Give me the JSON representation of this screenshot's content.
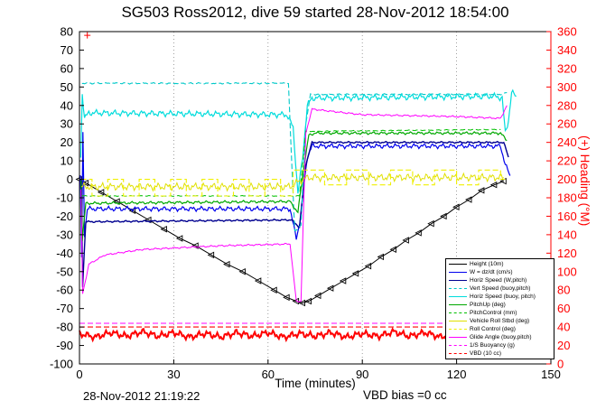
{
  "title": "SG503 Ross2012, dive 59 started 28-Nov-2012 18:54:00",
  "footer": {
    "timestamp": "28-Nov-2012 21:19:22",
    "vbd_bias": "VBD bias =0 cc"
  },
  "chart_data": {
    "type": "line",
    "title": "SG503 Ross2012, dive 59 started 28-Nov-2012 18:54:00",
    "xlabel": "Time (minutes)",
    "x_axis": {
      "min": 0,
      "max": 150,
      "ticks": [
        0,
        30,
        60,
        90,
        120,
        150
      ]
    },
    "left_axis": {
      "min": -100,
      "max": 80,
      "tick_step": 10
    },
    "right_axis": {
      "label": "(+) Heading (°M)",
      "min": 0,
      "max": 360,
      "tick_step": 20,
      "color": "#ff0000"
    },
    "grid": "vertical-dotted",
    "legend": {
      "position": "lower-right",
      "entries": [
        {
          "label": "Height (10m)",
          "color": "#000000",
          "dash": "solid"
        },
        {
          "label": "W = dz/dt (cm/s)",
          "color": "#0000ee",
          "dash": "solid"
        },
        {
          "label": "Horiz Speed (W,pitch)",
          "color": "#000090",
          "dash": "solid"
        },
        {
          "label": "Vert Speed (buoy,pitch)",
          "color": "#00c8c8",
          "dash": "dashed"
        },
        {
          "label": "Horiz Speed (buoy, pitch)",
          "color": "#00dcdc",
          "dash": "solid"
        },
        {
          "label": "PitchUp (deg)",
          "color": "#00a800",
          "dash": "solid"
        },
        {
          "label": "PitchControl (mm)",
          "color": "#00c000",
          "dash": "dashed"
        },
        {
          "label": "Vehicle Roll Stbd (deg)",
          "color": "#e0e000",
          "dash": "solid"
        },
        {
          "label": "Roll Control (deg)",
          "color": "#f0f000",
          "dash": "dashed"
        },
        {
          "label": "Glide Angle (buoy,pitch)",
          "color": "#ff00ff",
          "dash": "solid"
        },
        {
          "label": "1/S Buoyancy (g)",
          "color": "#ff00ff",
          "dash": "dashed"
        },
        {
          "label": "VBD (10 cc)",
          "color": "#ff0000",
          "dash": "dashed"
        }
      ]
    },
    "series": [
      {
        "name": "height-10m",
        "color": "#000000",
        "dash": "solid",
        "width": 1,
        "axis": "left",
        "noise": 0,
        "marker": "triangle-left",
        "points": [
          [
            0,
            0
          ],
          [
            2,
            -2
          ],
          [
            7,
            -7
          ],
          [
            12,
            -12
          ],
          [
            17,
            -17
          ],
          [
            22,
            -22
          ],
          [
            27,
            -27
          ],
          [
            32,
            -32
          ],
          [
            37,
            -36
          ],
          [
            42,
            -41
          ],
          [
            47,
            -46
          ],
          [
            52,
            -50
          ],
          [
            57,
            -55
          ],
          [
            62,
            -60
          ],
          [
            66,
            -64
          ],
          [
            69,
            -66
          ],
          [
            71,
            -67
          ],
          [
            73,
            -66
          ],
          [
            76,
            -63
          ],
          [
            80,
            -59
          ],
          [
            84,
            -55
          ],
          [
            88,
            -51
          ],
          [
            92,
            -47
          ],
          [
            96,
            -42
          ],
          [
            100,
            -38
          ],
          [
            104,
            -33
          ],
          [
            108,
            -29
          ],
          [
            112,
            -24
          ],
          [
            116,
            -20
          ],
          [
            120,
            -15
          ],
          [
            124,
            -11
          ],
          [
            128,
            -6
          ],
          [
            132,
            -3
          ],
          [
            135,
            -1
          ]
        ]
      },
      {
        "name": "w-dzdt",
        "color": "#0000ee",
        "dash": "solid",
        "width": 1.2,
        "axis": "left",
        "noise": 1.4,
        "points": [
          [
            0.3,
            2
          ],
          [
            0.7,
            -43
          ],
          [
            1.1,
            25
          ],
          [
            1.6,
            -30
          ],
          [
            2.5,
            -16
          ],
          [
            67,
            -16
          ],
          [
            69,
            -32
          ],
          [
            70.5,
            -20
          ],
          [
            71.5,
            -2
          ],
          [
            72.5,
            12
          ],
          [
            74,
            18
          ],
          [
            134,
            18
          ],
          [
            135.5,
            8
          ],
          [
            137,
            2
          ]
        ]
      },
      {
        "name": "horiz-speed-w-pitch",
        "color": "#000090",
        "dash": "solid",
        "width": 1.4,
        "axis": "left",
        "noise": 0.5,
        "points": [
          [
            0.6,
            0
          ],
          [
            1,
            -58
          ],
          [
            2,
            -23
          ],
          [
            67.5,
            -22
          ],
          [
            70,
            -26
          ],
          [
            72,
            8
          ],
          [
            74,
            20
          ],
          [
            135,
            20
          ],
          [
            136.5,
            12
          ]
        ]
      },
      {
        "name": "vert-speed-buoy-pitch",
        "color": "#00c8c8",
        "dash": "dashed",
        "width": 1.1,
        "axis": "left",
        "noise": 0.4,
        "points": [
          [
            0.8,
            52
          ],
          [
            66.5,
            52
          ],
          [
            67.5,
            10
          ],
          [
            68.5,
            -28
          ],
          [
            70.5,
            -25
          ],
          [
            72,
            30
          ],
          [
            73.5,
            46
          ],
          [
            134,
            46
          ],
          [
            136,
            47
          ]
        ]
      },
      {
        "name": "horiz-speed-buoy-pitch",
        "color": "#00dcdc",
        "dash": "solid",
        "width": 1.2,
        "axis": "left",
        "noise": 1.8,
        "points": [
          [
            0.4,
            12
          ],
          [
            0.9,
            47
          ],
          [
            1.6,
            33
          ],
          [
            3,
            36
          ],
          [
            66,
            35
          ],
          [
            68,
            28
          ],
          [
            69.5,
            -8
          ],
          [
            71,
            12
          ],
          [
            72.5,
            40
          ],
          [
            74,
            44
          ],
          [
            132,
            45
          ],
          [
            134.5,
            44
          ],
          [
            135.5,
            25
          ],
          [
            136.5,
            32
          ],
          [
            137.5,
            47
          ],
          [
            139,
            45
          ]
        ]
      },
      {
        "name": "pitchup",
        "color": "#00a800",
        "dash": "solid",
        "width": 1.2,
        "axis": "left",
        "noise": 0.8,
        "points": [
          [
            0.5,
            0
          ],
          [
            0.9,
            -33
          ],
          [
            2,
            -13
          ],
          [
            67,
            -12
          ],
          [
            69.5,
            -18
          ],
          [
            71,
            2
          ],
          [
            73,
            24
          ],
          [
            75,
            25
          ],
          [
            134,
            25
          ],
          [
            136,
            21
          ]
        ]
      },
      {
        "name": "pitch-control",
        "color": "#00c000",
        "dash": "dashed",
        "width": 1,
        "axis": "left",
        "noise": 0.25,
        "points": [
          [
            0.8,
            -9
          ],
          [
            67,
            -9
          ],
          [
            70,
            -9
          ],
          [
            72,
            26
          ],
          [
            134,
            27
          ]
        ]
      },
      {
        "name": "vehicle-roll-stbd",
        "color": "#e0e000",
        "dash": "solid",
        "width": 1,
        "axis": "left",
        "noise": 2.2,
        "points": [
          [
            0.6,
            -4
          ],
          [
            67,
            -4
          ],
          [
            71,
            0
          ],
          [
            73,
            1
          ],
          [
            135,
            1
          ]
        ]
      },
      {
        "name": "roll-control",
        "color": "#f0f000",
        "dash": "dashed",
        "width": 1.1,
        "axis": "left",
        "noise": 0,
        "points": [
          [
            0.5,
            0
          ],
          [
            4,
            0
          ],
          [
            4,
            -9
          ],
          [
            9,
            -9
          ],
          [
            9,
            0
          ],
          [
            14,
            0
          ],
          [
            14,
            -9
          ],
          [
            19,
            -9
          ],
          [
            19,
            0
          ],
          [
            24,
            0
          ],
          [
            24,
            -9
          ],
          [
            29,
            -9
          ],
          [
            29,
            0
          ],
          [
            34,
            0
          ],
          [
            34,
            -9
          ],
          [
            39,
            -9
          ],
          [
            39,
            0
          ],
          [
            44,
            0
          ],
          [
            44,
            -9
          ],
          [
            49,
            -9
          ],
          [
            49,
            0
          ],
          [
            54,
            0
          ],
          [
            54,
            -9
          ],
          [
            59,
            -9
          ],
          [
            59,
            0
          ],
          [
            64,
            0
          ],
          [
            64,
            -9
          ],
          [
            68,
            -9
          ],
          [
            68,
            5
          ],
          [
            78,
            5
          ],
          [
            78,
            -3
          ],
          [
            85,
            -3
          ],
          [
            85,
            5
          ],
          [
            92,
            5
          ],
          [
            92,
            -3
          ],
          [
            99,
            -3
          ],
          [
            99,
            5
          ],
          [
            106,
            5
          ],
          [
            106,
            -3
          ],
          [
            113,
            -3
          ],
          [
            113,
            5
          ],
          [
            120,
            5
          ],
          [
            120,
            -3
          ],
          [
            127,
            -3
          ],
          [
            127,
            5
          ],
          [
            134,
            5
          ],
          [
            134,
            0
          ],
          [
            136,
            0
          ]
        ]
      },
      {
        "name": "glide-angle",
        "color": "#ff00ff",
        "dash": "solid",
        "width": 1,
        "axis": "left",
        "noise": 0.5,
        "points": [
          [
            0.5,
            -6
          ],
          [
            1,
            -62
          ],
          [
            3,
            -46
          ],
          [
            8,
            -41
          ],
          [
            20,
            -38
          ],
          [
            45,
            -36
          ],
          [
            67,
            -35
          ],
          [
            69,
            -66
          ],
          [
            70.5,
            -66
          ],
          [
            72,
            25
          ],
          [
            74,
            38
          ],
          [
            90,
            35
          ],
          [
            120,
            34
          ],
          [
            134,
            33
          ],
          [
            136,
            40
          ]
        ]
      },
      {
        "name": "inv-s-buoyancy",
        "color": "#ff00ff",
        "dash": "dashed",
        "width": 1.1,
        "axis": "left",
        "noise": 0,
        "points": [
          [
            0,
            -78
          ],
          [
            150,
            -78
          ]
        ]
      },
      {
        "name": "vbd-10cc",
        "color": "#ff0000",
        "dash": "dashed",
        "width": 1.1,
        "axis": "left",
        "noise": 0,
        "points": [
          [
            0,
            -80
          ],
          [
            150,
            -80
          ]
        ]
      },
      {
        "name": "heading",
        "color": "#ff0000",
        "dash": "solid",
        "width": 2,
        "axis": "right",
        "noise": 4,
        "points": [
          [
            0,
            33
          ],
          [
            5,
            29
          ],
          [
            10,
            34
          ],
          [
            15,
            30
          ],
          [
            20,
            35
          ],
          [
            25,
            30
          ],
          [
            30,
            34
          ],
          [
            35,
            29
          ],
          [
            40,
            33
          ],
          [
            45,
            29
          ],
          [
            50,
            34
          ],
          [
            55,
            30
          ],
          [
            60,
            34
          ],
          [
            65,
            29
          ],
          [
            70,
            33
          ],
          [
            75,
            30
          ],
          [
            80,
            34
          ],
          [
            85,
            29
          ],
          [
            90,
            33
          ],
          [
            95,
            30
          ],
          [
            100,
            35
          ],
          [
            105,
            30
          ],
          [
            110,
            34
          ],
          [
            115,
            29
          ],
          [
            120,
            33
          ],
          [
            125,
            30
          ],
          [
            130,
            34
          ],
          [
            135,
            30
          ],
          [
            140,
            32
          ]
        ]
      },
      {
        "name": "start-marker",
        "color": "#ff0000",
        "dash": "solid",
        "width": 1,
        "axis": "left",
        "noise": 0,
        "marker": "plus",
        "points": [
          [
            2.5,
            78
          ]
        ]
      }
    ]
  }
}
